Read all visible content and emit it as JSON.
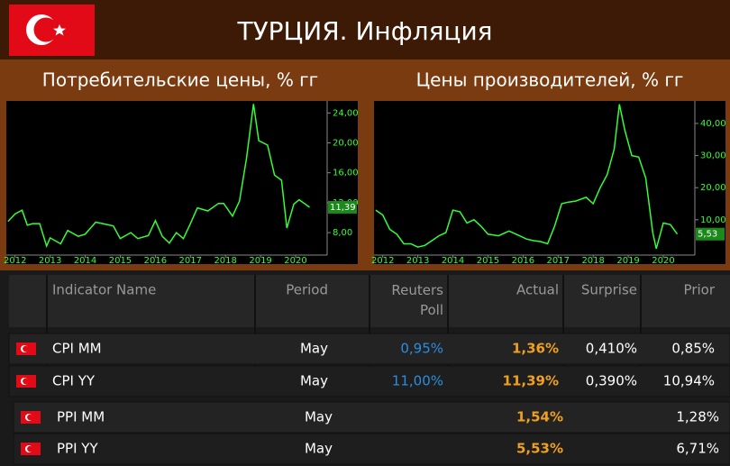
{
  "header": {
    "title": "ТУРЦИЯ. Инфляция"
  },
  "chart_data": [
    {
      "type": "line",
      "title": "Потребительские цены, % гг",
      "color": "#33ff33",
      "x": [
        2011.8,
        2012.0,
        2012.2,
        2012.35,
        2012.5,
        2012.7,
        2012.9,
        2013.0,
        2013.3,
        2013.5,
        2013.8,
        2014.0,
        2014.3,
        2014.5,
        2014.8,
        2015.0,
        2015.3,
        2015.5,
        2015.8,
        2016.0,
        2016.2,
        2016.4,
        2016.6,
        2016.8,
        2017.0,
        2017.2,
        2017.5,
        2017.8,
        2017.95,
        2018.2,
        2018.4,
        2018.6,
        2018.8,
        2018.95,
        2019.2,
        2019.4,
        2019.6,
        2019.75,
        2019.95,
        2020.1,
        2020.25,
        2020.4
      ],
      "values": [
        9.5,
        10.5,
        11,
        9,
        9.2,
        9.2,
        6.2,
        7.3,
        6.5,
        8.3,
        7.5,
        7.8,
        9.4,
        9.2,
        8.9,
        7.2,
        8,
        7.2,
        7.6,
        9.6,
        7.5,
        6.6,
        8,
        7.2,
        9.2,
        11.3,
        10.9,
        11.9,
        11.9,
        10.2,
        12.2,
        17.9,
        25.2,
        20.3,
        19.7,
        15.7,
        15,
        8.6,
        11.8,
        12.4,
        11.9,
        11.39
      ],
      "value_labels": [
        null,
        null,
        null,
        null,
        null,
        null,
        null,
        null,
        null,
        null,
        null,
        null,
        null,
        null,
        null,
        null,
        null,
        null,
        null,
        null,
        null,
        null,
        null,
        null,
        null,
        null,
        null,
        null,
        null,
        null,
        null,
        null,
        null,
        null,
        null,
        null,
        null,
        null,
        null,
        null,
        null,
        "11,39"
      ],
      "xlim": [
        2011.75,
        2020.9
      ],
      "xticks": [
        2012,
        2013,
        2014,
        2015,
        2016,
        2017,
        2018,
        2019,
        2020
      ],
      "ylim": [
        5,
        25.6
      ],
      "yticks": [
        {
          "value": 8,
          "label": "8,00"
        },
        {
          "value": 12,
          "label": "12,00"
        },
        {
          "value": 16,
          "label": "16,00"
        },
        {
          "value": 20,
          "label": "20,00"
        },
        {
          "value": 24,
          "label": "24,00"
        }
      ]
    },
    {
      "type": "line",
      "title": "Цены производителей, % гг",
      "color": "#33ff33",
      "x": [
        2011.8,
        2012.0,
        2012.2,
        2012.4,
        2012.6,
        2012.8,
        2013.0,
        2013.2,
        2013.4,
        2013.6,
        2013.8,
        2014.0,
        2014.2,
        2014.4,
        2014.6,
        2014.8,
        2015.0,
        2015.3,
        2015.6,
        2015.9,
        2016.1,
        2016.3,
        2016.5,
        2016.7,
        2016.9,
        2017.1,
        2017.3,
        2017.5,
        2017.8,
        2018.0,
        2018.2,
        2018.4,
        2018.6,
        2018.75,
        2018.9,
        2019.1,
        2019.3,
        2019.5,
        2019.7,
        2019.8,
        2020.0,
        2020.2,
        2020.4
      ],
      "values": [
        13,
        11.5,
        7,
        5.5,
        2.5,
        2.5,
        1.5,
        2,
        3.5,
        5,
        6,
        13,
        12.5,
        9,
        10,
        8,
        5.5,
        5,
        6.5,
        5,
        4,
        3.5,
        3.2,
        2.5,
        8,
        15,
        15.5,
        15.8,
        17,
        15,
        20,
        24,
        32,
        46,
        38,
        30,
        29.5,
        23,
        6,
        1,
        9,
        8.5,
        5.53
      ],
      "value_labels": [
        null,
        null,
        null,
        null,
        null,
        null,
        null,
        null,
        null,
        null,
        null,
        null,
        null,
        null,
        null,
        null,
        null,
        null,
        null,
        null,
        null,
        null,
        null,
        null,
        null,
        null,
        null,
        null,
        null,
        null,
        null,
        null,
        null,
        null,
        null,
        null,
        null,
        null,
        null,
        null,
        null,
        null,
        "5,53"
      ],
      "xlim": [
        2011.75,
        2020.9
      ],
      "xticks": [
        2012,
        2013,
        2014,
        2015,
        2016,
        2017,
        2018,
        2019,
        2020
      ],
      "ylim": [
        -1,
        47
      ],
      "yticks": [
        {
          "value": 10,
          "label": "10,00"
        },
        {
          "value": 20,
          "label": "20,00"
        },
        {
          "value": 30,
          "label": "30,00"
        },
        {
          "value": 40,
          "label": "40,00"
        }
      ]
    }
  ],
  "table": {
    "columns": [
      "Indicator Name",
      "Period",
      "Reuters Poll",
      "Actual",
      "Surprise",
      "Prior"
    ],
    "rows": [
      [
        "CPI MM",
        "May",
        "0,95%",
        "1,36%",
        "0,410%",
        "0,85%"
      ],
      [
        "CPI YY",
        "May",
        "11,00%",
        "11,39%",
        "0,390%",
        "10,94%"
      ],
      [
        "PPI MM",
        "May",
        null,
        "1,54%",
        null,
        "1,28%"
      ],
      [
        "PPI YY",
        "May",
        null,
        "5,53%",
        null,
        "6,71%"
      ]
    ]
  }
}
